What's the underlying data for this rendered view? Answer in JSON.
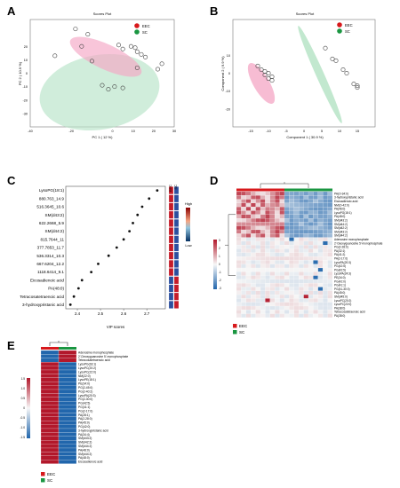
{
  "panels": {
    "A": "A",
    "B": "B",
    "C": "C",
    "D": "D",
    "E": "E"
  },
  "groups": {
    "eec": {
      "label": "EEC",
      "color": "#d7191c"
    },
    "sc": {
      "label": "SC",
      "color": "#1a9641"
    }
  },
  "chart_data": [
    {
      "id": "A",
      "type": "scatter",
      "title": "Scores Plot",
      "xlabel": "PC 1 ( 12 %)",
      "ylabel": "PC 2 ( 10.9 %)",
      "xlim": [
        -40,
        30
      ],
      "ylim": [
        -40,
        40
      ],
      "xticks": [
        "-40",
        "-20",
        "0",
        "10",
        "20",
        "30"
      ],
      "yticks": [
        "20",
        "10",
        "0",
        "-10",
        "-20",
        "-30"
      ],
      "legend": [
        "EEC",
        "SC"
      ],
      "legend_position": "top-right",
      "series": [
        {
          "name": "EEC",
          "color": "#e7298a",
          "x": [
            -18,
            -12,
            3,
            5,
            9,
            11,
            12,
            14,
            16
          ],
          "y": [
            33,
            29,
            21,
            18,
            20,
            19,
            16,
            14,
            12
          ]
        },
        {
          "name": "SC",
          "color": "#1a9641",
          "x": [
            -28,
            -15,
            -10,
            -5,
            -2,
            1,
            5,
            12,
            22,
            24
          ],
          "y": [
            13,
            20,
            9,
            -9,
            -12,
            -10,
            -11,
            4,
            3,
            7
          ]
        }
      ]
    },
    {
      "id": "B",
      "type": "scatter",
      "title": "Scores Plot",
      "xlabel": "Component 1 ( 30.9 %)",
      "ylabel": "Component 2 ( 9.9 %)",
      "xlim": [
        -20,
        20
      ],
      "ylim": [
        -30,
        30
      ],
      "xticks": [
        "-15",
        "-10",
        "-5",
        "0",
        "5",
        "10",
        "15"
      ],
      "yticks": [
        "10",
        "0",
        "-10",
        "-20"
      ],
      "legend": [
        "EEC",
        "SC"
      ],
      "legend_position": "top-right",
      "series": [
        {
          "name": "EEC",
          "color": "#e7298a",
          "x": [
            -13,
            -12,
            -11,
            -10,
            -9,
            -11,
            -10,
            -9
          ],
          "y": [
            4,
            2,
            1,
            0,
            -2,
            -1,
            -3,
            -4
          ]
        },
        {
          "name": "SC",
          "color": "#1a9641",
          "x": [
            6,
            8,
            9,
            11,
            12,
            14,
            15,
            15
          ],
          "y": [
            14,
            8,
            7,
            2,
            0,
            -6,
            -7,
            -8
          ]
        }
      ]
    },
    {
      "id": "C",
      "type": "scatter",
      "xlabel": "VIP scores",
      "xlim": [
        2.35,
        2.78
      ],
      "xticks": [
        2.4,
        2.5,
        2.6,
        2.7
      ],
      "legend": {
        "title_high": "High",
        "title_low": "Low"
      },
      "group_labels": [
        "EEC",
        "SC"
      ],
      "features": [
        {
          "label": "LysoPG(18:1)",
          "vip": 2.745,
          "eec": "high",
          "sc": "low"
        },
        {
          "label": "880.763_14.9",
          "vip": 2.71,
          "eec": "high",
          "sc": "low"
        },
        {
          "label": "516.3645_10.6",
          "vip": 2.68,
          "eec": "high",
          "sc": "low"
        },
        {
          "label": "SM(d43:2)",
          "vip": 2.66,
          "eec": "high",
          "sc": "low"
        },
        {
          "label": "622.2668_5.9",
          "vip": 2.64,
          "eec": "high",
          "sc": "low"
        },
        {
          "label": "SM(d44:2)",
          "vip": 2.625,
          "eec": "high",
          "sc": "low"
        },
        {
          "label": "815.7644_11",
          "vip": 2.6,
          "eec": "high",
          "sc": "low"
        },
        {
          "label": "377.7853_11.7",
          "vip": 2.57,
          "eec": "high",
          "sc": "low"
        },
        {
          "label": "536.3314_10.3",
          "vip": 2.535,
          "eec": "high",
          "sc": "low"
        },
        {
          "label": "667.6204_12.2",
          "vip": 2.49,
          "eec": "high",
          "sc": "low"
        },
        {
          "label": "1118.6414_9.1",
          "vip": 2.46,
          "eec": "high",
          "sc": "low"
        },
        {
          "label": "Eicosadienoic acid",
          "vip": 2.42,
          "eec": "low",
          "sc": "high"
        },
        {
          "label": "PA(48:0)",
          "vip": 2.405,
          "eec": "low",
          "sc": "high"
        },
        {
          "label": "Tetracosatetraenoic acid",
          "vip": 2.385,
          "eec": "low",
          "sc": "high"
        },
        {
          "label": "3-hydroxypristanic acid",
          "vip": 2.37,
          "eec": "low",
          "sc": "high"
        }
      ]
    },
    {
      "id": "D",
      "type": "heatmap",
      "legend": [
        "EEC",
        "SC"
      ],
      "colorbar_ticks": [
        "3",
        "2",
        "1",
        "0",
        "-1",
        "-2",
        "-3"
      ],
      "row_labels": [
        "PA(O-34:0)",
        "3-hydroxypristanic acid",
        "Eicosadienoic acid",
        "NM(O-42:0)",
        "PA(46:0)",
        "LysoPG(18:1)",
        "PA(48:0)",
        "SM(d43:2)",
        "SM(d44:2)",
        "SM(d42:2)",
        "SM(d43:2)",
        "SM(d44:2)",
        "Adenosine monophosphate",
        "2'-Deoxyguanosine 5'-monophosphate",
        "PG(2-28:0)",
        "PA(32:1)",
        "PA(41:2)",
        "PA(2-17:0)",
        "LysoPA(20:3)",
        "PG(42:5)",
        "PG(42:5)",
        "LysoPA(24:3)",
        "PE(34:0)",
        "PG(42:0)",
        "PG(41:1)",
        "PG(41-30:0)",
        "PA(45:0)",
        "SM(d45:0)",
        "LysoPC(20:2)",
        "LysoPC(22:0)",
        "PA(38:0)",
        "Tetracosatetraenoic acid",
        "PA(38:0)"
      ],
      "columns": 20
    },
    {
      "id": "E",
      "type": "heatmap",
      "legend": [
        "EEC",
        "SC"
      ],
      "colorbar_ticks": [
        "1.5",
        "1.0",
        "0.5",
        "0",
        "-0.5",
        "-1.0",
        "-1.5"
      ],
      "row_labels": [
        "Adenosine monophosphate",
        "2'-Deoxyguanosine 5'-monophosphate",
        "Tetracosatetraenoic acid",
        "LysoPG(18:1)",
        "LysoPC(20:2)",
        "LysoPC(22:0)",
        "NM(22:0)",
        "LysoPE(18:1)",
        "PE(34:0)",
        "PG(2-45:0)",
        "PG(2-40:2)",
        "LysoPA(20:3)",
        "PG(2-30:0)",
        "PG(42:5)",
        "PG(41:1)",
        "PG(2-17:0)",
        "PA(28:1)",
        "PA(2-28:0)",
        "PA(45:0)",
        "PG(42:0)",
        "3-hydroxypristanic acid",
        "PA(34:4)",
        "SM(d43:2)",
        "SM(d42:2)",
        "SM(d44:2)",
        "PA(48:0)",
        "SM(d44:2)",
        "PA(48:0)",
        "Eicosadienoic acid"
      ],
      "columns": [
        "EEC",
        "SC"
      ],
      "values": [
        [
          -1.5,
          1.5
        ],
        [
          -1.5,
          1.5
        ],
        [
          -1.5,
          1.5
        ],
        [
          1.5,
          -1.5
        ],
        [
          1.5,
          -1.5
        ],
        [
          1.5,
          -1.5
        ],
        [
          1.5,
          -1.5
        ],
        [
          1.5,
          -1.5
        ],
        [
          1.5,
          -1.5
        ],
        [
          1.5,
          -1.5
        ],
        [
          1.5,
          -1.5
        ],
        [
          1.5,
          -1.5
        ],
        [
          1.5,
          -1.5
        ],
        [
          1.5,
          -1.5
        ],
        [
          1.5,
          -1.5
        ],
        [
          1.5,
          -1.5
        ],
        [
          1.5,
          -1.5
        ],
        [
          1.5,
          -1.5
        ],
        [
          1.5,
          -1.5
        ],
        [
          1.5,
          -1.5
        ],
        [
          1.5,
          -1.5
        ],
        [
          1.5,
          -1.5
        ],
        [
          1.5,
          -1.5
        ],
        [
          1.5,
          -1.5
        ],
        [
          1.5,
          -1.5
        ],
        [
          1.5,
          -1.5
        ],
        [
          1.5,
          -1.5
        ],
        [
          1.5,
          -1.5
        ],
        [
          1.5,
          -1.5
        ]
      ]
    }
  ]
}
